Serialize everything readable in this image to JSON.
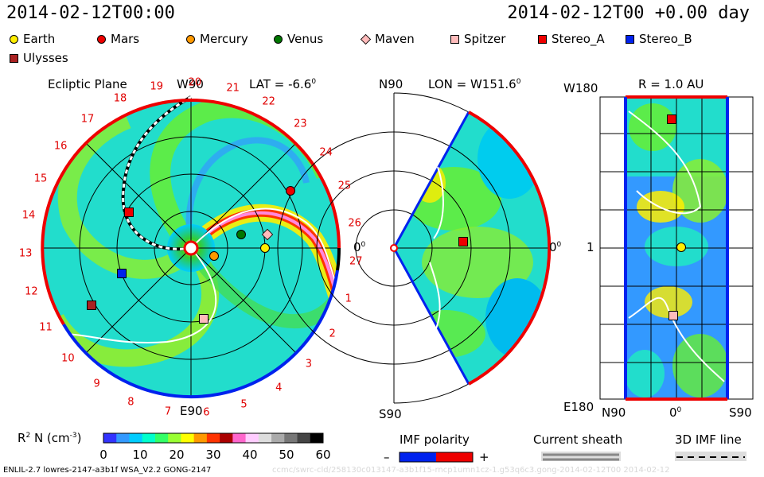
{
  "header": {
    "datetime_left": "2014-02-12T00:00",
    "datetime_right": "2014-02-12T00 +0.00 day"
  },
  "legend": [
    {
      "label": "Earth",
      "shape": "circle",
      "color": "#ffee00"
    },
    {
      "label": "Mars",
      "shape": "circle",
      "color": "#ee0000"
    },
    {
      "label": "Mercury",
      "shape": "circle",
      "color": "#ff9900"
    },
    {
      "label": "Venus",
      "shape": "circle",
      "color": "#007700"
    },
    {
      "label": "Maven",
      "shape": "diamond",
      "color": "#ffbbbb"
    },
    {
      "label": "Spitzer",
      "shape": "square",
      "color": "#ffbbbb"
    },
    {
      "label": "Stereo_A",
      "shape": "square",
      "color": "#ee0000"
    },
    {
      "label": "Stereo_B",
      "shape": "square",
      "color": "#0022ee"
    },
    {
      "label": "Ulysses",
      "shape": "square",
      "color": "#aa2222"
    }
  ],
  "panels": {
    "ecliptic": {
      "title": "Ecliptic Plane",
      "top_label": "W90",
      "bottom_label": "E90",
      "right_label": "0",
      "right_label_sup": "0",
      "lat_label": "LAT = -6.6",
      "lat_sup": "0",
      "carrington_ticks": [
        "19",
        "20",
        "21",
        "22",
        "23",
        "24",
        "25",
        "26",
        "27",
        "1",
        "2",
        "3",
        "4",
        "5",
        "6",
        "7",
        "8",
        "9",
        "10",
        "11",
        "12",
        "13",
        "14",
        "15",
        "16",
        "17",
        "18"
      ]
    },
    "meridional": {
      "top_left": "N90",
      "bottom_left": "S90",
      "right_label": "0",
      "right_label_sup": "0",
      "lon_label": "LON = W151.6",
      "lon_sup": "0"
    },
    "radial": {
      "title": "R = 1.0 AU",
      "left_top": "W180",
      "left_mid": "1",
      "left_bottom": "E180",
      "bottom_left": "N90",
      "bottom_mid": "0",
      "bottom_mid_sup": "0",
      "bottom_right": "S90"
    }
  },
  "colorbar": {
    "label": "R",
    "label_sup": "2",
    "label_rest": " N (cm",
    "label_unit_sup": "-3",
    "label_end": ")",
    "ticks": [
      "0",
      "10",
      "20",
      "30",
      "40",
      "50",
      "60"
    ],
    "colors": [
      "#3333ff",
      "#3399ff",
      "#00ccff",
      "#00ffcc",
      "#33ff66",
      "#99ff33",
      "#ffff00",
      "#ff9900",
      "#ff3300",
      "#aa0000",
      "#ff66cc",
      "#ffccff",
      "#dddddd",
      "#aaaaaa",
      "#777777",
      "#444444",
      "#000000"
    ]
  },
  "imf_polarity": {
    "title": "IMF polarity",
    "minus": "–",
    "plus": "+",
    "neg_color": "#0022ee",
    "pos_color": "#ee0000"
  },
  "current_sheath": {
    "title": "Current sheath"
  },
  "imf_line": {
    "title": "3D IMF line"
  },
  "footer": {
    "left": "ENLIL-2.7 lowres-2147-a3b1f WSA_V2.2 GONG-2147",
    "right": "ccmc/swrc-cld/258130c013147-a3b1f15-rncp1umn1cz-1.g53q6c3.gong-2014-02-12T00   2014-02-12"
  },
  "chart_data": {
    "type": "heatmap",
    "title": "Ecliptic Plane",
    "quantity": "R2 N (cm-3)",
    "color_range": [
      0,
      60
    ],
    "bodies": [
      {
        "name": "Earth",
        "lon_deg": 0,
        "r_au": 1.0
      },
      {
        "name": "Mars",
        "lon_deg": 30,
        "r_au": 1.55
      },
      {
        "name": "Mercury",
        "lon_deg": -20,
        "r_au": 0.33
      },
      {
        "name": "Venus",
        "lon_deg": 15,
        "r_au": 0.7
      },
      {
        "name": "Maven",
        "lon_deg": 10,
        "r_au": 1.05
      },
      {
        "name": "Spitzer",
        "lon_deg": -80,
        "r_au": 0.97
      },
      {
        "name": "Stereo_A",
        "lon_deg": 150,
        "r_au": 0.97
      },
      {
        "name": "Stereo_B",
        "lon_deg": -160,
        "r_au": 1.0
      },
      {
        "name": "Ulysses",
        "lon_deg": -150,
        "r_au": 1.55
      }
    ]
  }
}
